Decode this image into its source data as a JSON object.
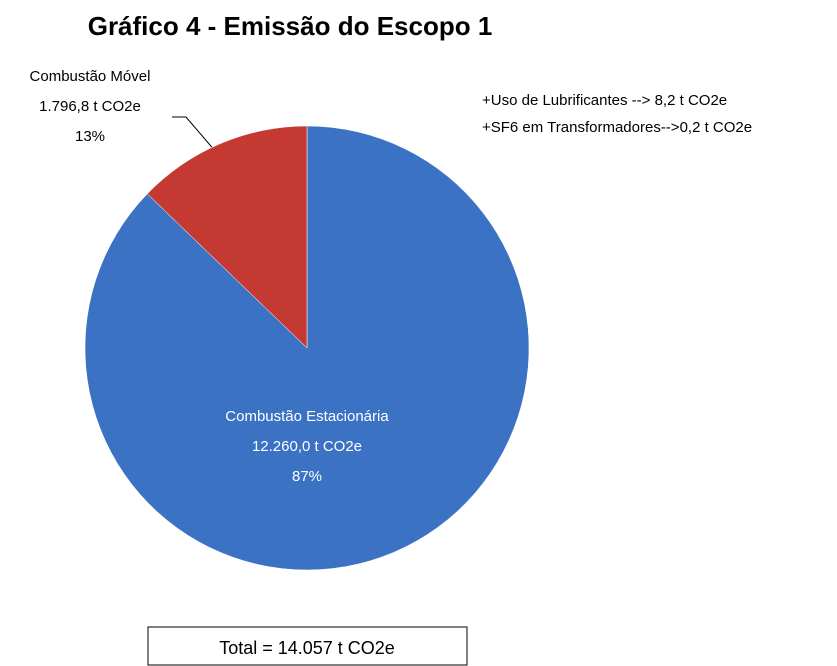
{
  "chart_data": {
    "type": "pie",
    "title": "Gráfico 4 - Emissão do Escopo 1",
    "categories": [
      "Combustão Estacionária",
      "Combustão Móvel"
    ],
    "values": [
      12260.0,
      1796.8
    ],
    "value_labels": [
      "12.260,0 t CO2e",
      "1.796,8 t CO2e"
    ],
    "percent_labels": [
      "87%",
      "13%"
    ],
    "colors": [
      "#3b72c4",
      "#c43a32"
    ],
    "annotations": [
      "+Uso de Lubrificantes --> 8,2 t CO2e",
      "+SF6 em Transformadores-->0,2 t CO2e"
    ],
    "total_label": "Total = 14.057 t CO2e"
  }
}
